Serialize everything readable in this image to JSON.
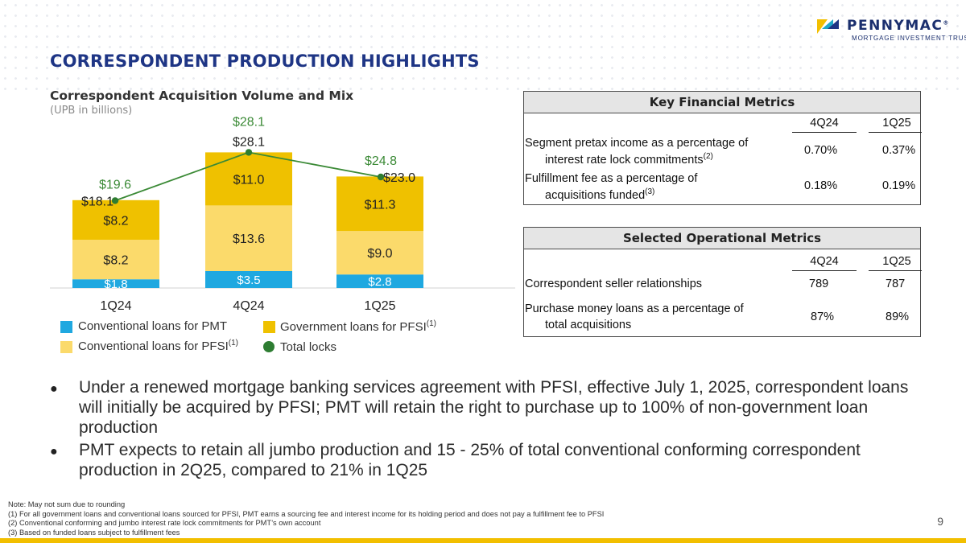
{
  "brand": {
    "name": "PENNYMAC",
    "registered": "®",
    "tagline": "MORTGAGE INVESTMENT TRUST",
    "colors": {
      "navy": "#1e3585",
      "yellow": "#f2bf00",
      "teal": "#1fa8c9"
    }
  },
  "page_title": "CORRESPONDENT PRODUCTION HIGHLIGHTS",
  "chart_data": {
    "type": "bar",
    "stacked": true,
    "title": "Correspondent Acquisition Volume and Mix",
    "subtitle": "(UPB in billions)",
    "categories": [
      "1Q24",
      "4Q24",
      "1Q25"
    ],
    "series": [
      {
        "name": "Conventional loans for PMT",
        "values": [
          1.8,
          3.5,
          2.8
        ],
        "labels": [
          "$1.8",
          "$3.5",
          "$2.8"
        ],
        "color": "#1fa8e0",
        "label_color": "#ffffff"
      },
      {
        "name": "Conventional loans for PFSI",
        "superscript": "(1)",
        "values": [
          8.2,
          13.6,
          9.0
        ],
        "labels": [
          "$8.2",
          "$13.6",
          "$9.0"
        ],
        "color": "#fbda6b",
        "label_color": "#222222"
      },
      {
        "name": "Government loans for PFSI",
        "superscript": "(1)",
        "values": [
          8.2,
          11.0,
          11.3
        ],
        "labels": [
          "$8.2",
          "$11.0",
          "$11.3"
        ],
        "color": "#efc100",
        "label_color": "#222222"
      }
    ],
    "totals": {
      "values": [
        18.1,
        28.1,
        23.0
      ],
      "labels": [
        "$18.1",
        "$28.1",
        "$23.0"
      ]
    },
    "total_locks": {
      "name": "Total locks",
      "values": [
        19.6,
        28.1,
        24.8
      ],
      "labels": [
        "$19.6",
        "$28.1",
        "$24.8"
      ],
      "color": "#3b8a36"
    }
  },
  "key_financial_metrics": {
    "title": "Key Financial Metrics",
    "columns": [
      "4Q24",
      "1Q25"
    ],
    "rows": [
      {
        "line1": "Segment pretax income as a percentage of",
        "line2": "interest rate lock commitments",
        "sup": "(2)",
        "values": [
          "0.70%",
          "0.37%"
        ]
      },
      {
        "line1": "Fulfillment fee as a percentage of",
        "line2": "acquisitions funded",
        "sup": "(3)",
        "values": [
          "0.18%",
          "0.19%"
        ]
      }
    ]
  },
  "selected_operational_metrics": {
    "title": "Selected Operational Metrics",
    "columns": [
      "4Q24",
      "1Q25"
    ],
    "rows": [
      {
        "line1": "Correspondent seller relationships",
        "values": [
          "789",
          "787"
        ]
      },
      {
        "line1": "Purchase money loans as a percentage of",
        "line2": "total acquisitions",
        "values": [
          "87%",
          "89%"
        ]
      }
    ]
  },
  "bullets": [
    "Under a renewed mortgage banking services agreement with PFSI, effective July 1, 2025, correspondent loans will initially be acquired by PFSI; PMT will retain the right to purchase up to 100% of non-government loan production",
    "PMT expects to retain all jumbo production and 15 - 25% of total conventional conforming correspondent production in 2Q25, compared to 21% in 1Q25"
  ],
  "notes": [
    "Note: May not sum due to rounding",
    "(1) For all government loans and conventional loans sourced for PFSI, PMT earns a sourcing fee and interest income for its holding period and does not pay a fulfillment fee to PFSI",
    "(2) Conventional conforming and jumbo interest rate lock commitments for PMT’s own account",
    "(3) Based on funded loans subject to fulfillment fees"
  ],
  "page_number": "9"
}
